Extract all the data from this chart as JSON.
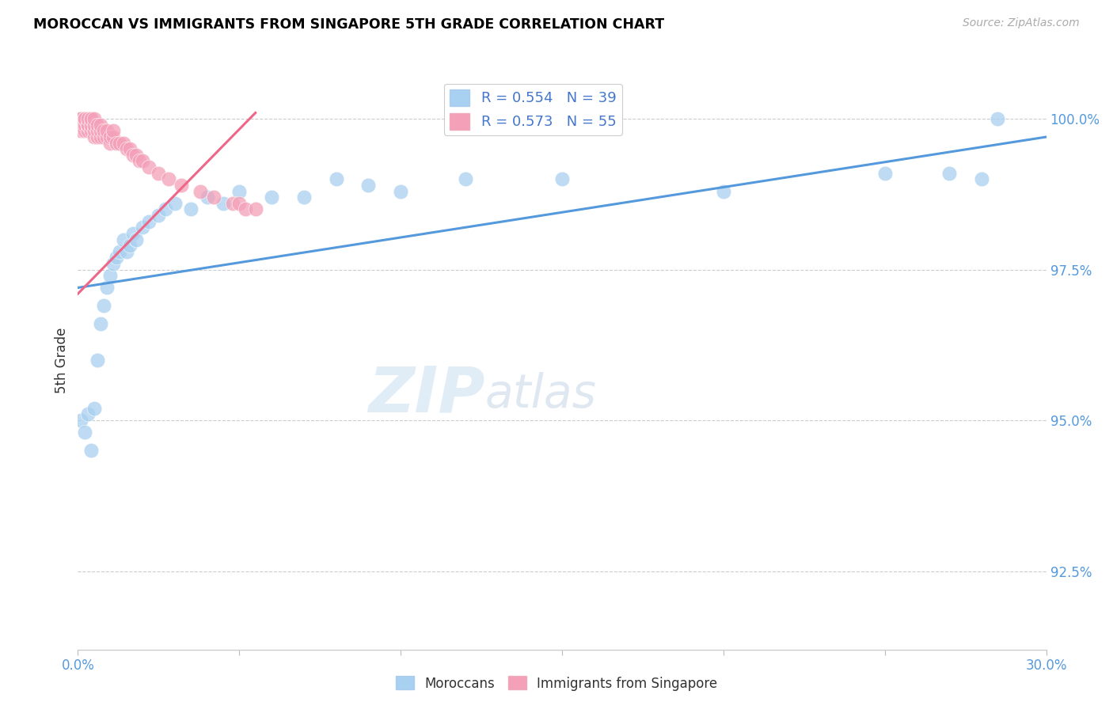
{
  "title": "MOROCCAN VS IMMIGRANTS FROM SINGAPORE 5TH GRADE CORRELATION CHART",
  "source": "Source: ZipAtlas.com",
  "ylabel": "5th Grade",
  "ylabel_right_ticks": [
    "100.0%",
    "97.5%",
    "95.0%",
    "92.5%"
  ],
  "ylabel_right_vals": [
    1.0,
    0.975,
    0.95,
    0.925
  ],
  "x_min": 0.0,
  "x_max": 0.3,
  "y_min": 0.912,
  "y_max": 1.008,
  "legend_blue_R": "0.554",
  "legend_blue_N": "39",
  "legend_pink_R": "0.573",
  "legend_pink_N": "55",
  "legend_label_blue": "Moroccans",
  "legend_label_pink": "Immigrants from Singapore",
  "blue_color": "#A8D0F0",
  "pink_color": "#F4A0B8",
  "line_blue_color": "#5599DD",
  "line_pink_color": "#EE6688",
  "watermark_zip": "ZIP",
  "watermark_atlas": "atlas",
  "blue_line_x0": 0.0,
  "blue_line_x1": 0.3,
  "blue_line_y0": 0.972,
  "blue_line_y1": 0.997,
  "pink_line_x0": 0.0,
  "pink_line_x1": 0.055,
  "pink_line_y0": 0.971,
  "pink_line_y1": 1.001,
  "blue_scatter_x": [
    0.001,
    0.002,
    0.003,
    0.004,
    0.005,
    0.006,
    0.007,
    0.008,
    0.009,
    0.01,
    0.011,
    0.012,
    0.013,
    0.014,
    0.015,
    0.016,
    0.017,
    0.018,
    0.02,
    0.022,
    0.025,
    0.027,
    0.03,
    0.035,
    0.04,
    0.045,
    0.05,
    0.06,
    0.07,
    0.08,
    0.09,
    0.1,
    0.12,
    0.15,
    0.2,
    0.25,
    0.27,
    0.28,
    0.285
  ],
  "blue_scatter_y": [
    0.95,
    0.948,
    0.951,
    0.945,
    0.952,
    0.96,
    0.966,
    0.969,
    0.972,
    0.974,
    0.976,
    0.977,
    0.978,
    0.98,
    0.978,
    0.979,
    0.981,
    0.98,
    0.982,
    0.983,
    0.984,
    0.985,
    0.986,
    0.985,
    0.987,
    0.986,
    0.988,
    0.987,
    0.987,
    0.99,
    0.989,
    0.988,
    0.99,
    0.99,
    0.988,
    0.991,
    0.991,
    0.99,
    1.0
  ],
  "pink_scatter_x": [
    0.001,
    0.001,
    0.001,
    0.001,
    0.001,
    0.002,
    0.002,
    0.002,
    0.002,
    0.002,
    0.003,
    0.003,
    0.003,
    0.003,
    0.004,
    0.004,
    0.004,
    0.004,
    0.005,
    0.005,
    0.005,
    0.005,
    0.006,
    0.006,
    0.006,
    0.007,
    0.007,
    0.007,
    0.008,
    0.008,
    0.009,
    0.009,
    0.01,
    0.01,
    0.011,
    0.011,
    0.012,
    0.013,
    0.014,
    0.015,
    0.016,
    0.017,
    0.018,
    0.019,
    0.02,
    0.022,
    0.025,
    0.028,
    0.032,
    0.038,
    0.042,
    0.048,
    0.05,
    0.052,
    0.055
  ],
  "pink_scatter_y": [
    0.998,
    0.999,
    1.0,
    1.0,
    1.0,
    0.998,
    0.999,
    1.0,
    1.0,
    1.0,
    0.998,
    0.999,
    0.999,
    1.0,
    0.998,
    0.999,
    1.0,
    1.0,
    0.997,
    0.998,
    0.999,
    1.0,
    0.997,
    0.998,
    0.999,
    0.997,
    0.998,
    0.999,
    0.997,
    0.998,
    0.997,
    0.998,
    0.996,
    0.997,
    0.997,
    0.998,
    0.996,
    0.996,
    0.996,
    0.995,
    0.995,
    0.994,
    0.994,
    0.993,
    0.993,
    0.992,
    0.991,
    0.99,
    0.989,
    0.988,
    0.987,
    0.986,
    0.986,
    0.985,
    0.985
  ]
}
